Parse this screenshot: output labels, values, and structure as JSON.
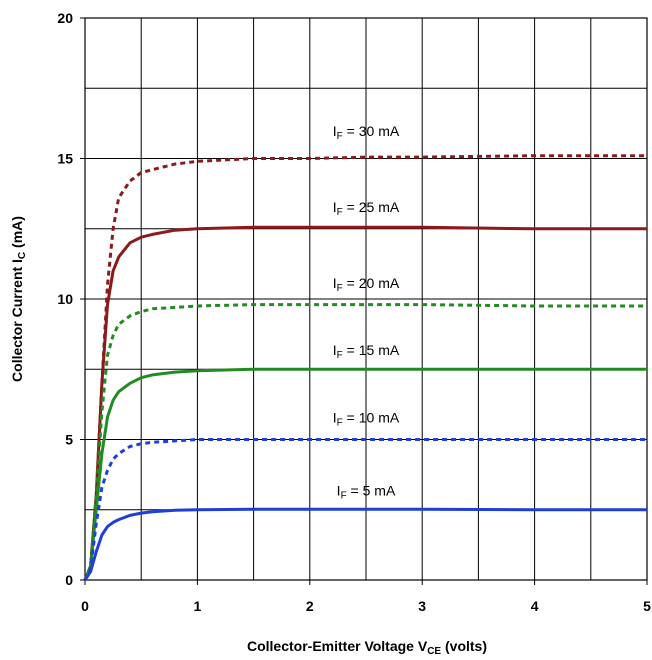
{
  "chart_data": {
    "type": "line",
    "xlabel": {
      "main": "Collector-Emitter Voltage V",
      "sub": "CE",
      "tail": " (volts)"
    },
    "ylabel": {
      "main": "Collector Current I",
      "sub": "C",
      "tail": " (mA)"
    },
    "xlim": [
      0,
      5
    ],
    "ylim": [
      0,
      20
    ],
    "xticks": [
      "0",
      "1",
      "2",
      "3",
      "4",
      "5"
    ],
    "yticks": [
      "0",
      "5",
      "10",
      "15",
      "20"
    ],
    "x_grid_step": 0.5,
    "y_grid_step": 2.5,
    "grid": true,
    "legend": "none",
    "series": [
      {
        "label_parts": {
          "pre": "I",
          "sub": "F",
          "post": " = 30 mA"
        },
        "label_pos": [
          2.5,
          15.8
        ],
        "color": "#8b1a1a",
        "style": "dashed",
        "points": [
          [
            0,
            0
          ],
          [
            0.05,
            0.5
          ],
          [
            0.1,
            3
          ],
          [
            0.15,
            7
          ],
          [
            0.2,
            10.5
          ],
          [
            0.25,
            12.5
          ],
          [
            0.3,
            13.6
          ],
          [
            0.4,
            14.2
          ],
          [
            0.5,
            14.5
          ],
          [
            0.6,
            14.6
          ],
          [
            0.8,
            14.8
          ],
          [
            1,
            14.9
          ],
          [
            1.5,
            15.0
          ],
          [
            2,
            15.0
          ],
          [
            2.5,
            15.05
          ],
          [
            3,
            15.05
          ],
          [
            4,
            15.1
          ],
          [
            5,
            15.1
          ]
        ]
      },
      {
        "label_parts": {
          "pre": "I",
          "sub": "F",
          "post": " = 25 mA"
        },
        "label_pos": [
          2.5,
          13.1
        ],
        "color": "#8b1a1a",
        "style": "solid",
        "points": [
          [
            0,
            0
          ],
          [
            0.05,
            0.5
          ],
          [
            0.1,
            3
          ],
          [
            0.15,
            7
          ],
          [
            0.2,
            9.8
          ],
          [
            0.25,
            11.0
          ],
          [
            0.3,
            11.5
          ],
          [
            0.4,
            12.0
          ],
          [
            0.5,
            12.2
          ],
          [
            0.6,
            12.3
          ],
          [
            0.8,
            12.45
          ],
          [
            1,
            12.5
          ],
          [
            1.5,
            12.55
          ],
          [
            2,
            12.55
          ],
          [
            2.5,
            12.55
          ],
          [
            3,
            12.55
          ],
          [
            4,
            12.5
          ],
          [
            5,
            12.5
          ]
        ]
      },
      {
        "label_parts": {
          "pre": "I",
          "sub": "F",
          "post": " = 20 mA"
        },
        "label_pos": [
          2.5,
          10.4
        ],
        "color": "#228b22",
        "style": "dashed",
        "points": [
          [
            0,
            0
          ],
          [
            0.05,
            0.5
          ],
          [
            0.1,
            3
          ],
          [
            0.15,
            6
          ],
          [
            0.2,
            8.0
          ],
          [
            0.25,
            8.7
          ],
          [
            0.3,
            9.1
          ],
          [
            0.4,
            9.4
          ],
          [
            0.5,
            9.55
          ],
          [
            0.6,
            9.65
          ],
          [
            0.8,
            9.7
          ],
          [
            1,
            9.75
          ],
          [
            1.5,
            9.8
          ],
          [
            2,
            9.8
          ],
          [
            2.5,
            9.8
          ],
          [
            3,
            9.8
          ],
          [
            4,
            9.75
          ],
          [
            5,
            9.75
          ]
        ]
      },
      {
        "label_parts": {
          "pre": "I",
          "sub": "F",
          "post": " = 15 mA"
        },
        "label_pos": [
          2.5,
          8.0
        ],
        "color": "#228b22",
        "style": "solid",
        "points": [
          [
            0,
            0
          ],
          [
            0.05,
            0.5
          ],
          [
            0.1,
            2.5
          ],
          [
            0.15,
            4.5
          ],
          [
            0.2,
            5.8
          ],
          [
            0.25,
            6.4
          ],
          [
            0.3,
            6.7
          ],
          [
            0.4,
            7.0
          ],
          [
            0.5,
            7.2
          ],
          [
            0.6,
            7.3
          ],
          [
            0.8,
            7.4
          ],
          [
            1,
            7.45
          ],
          [
            1.5,
            7.5
          ],
          [
            2,
            7.5
          ],
          [
            2.5,
            7.5
          ],
          [
            3,
            7.5
          ],
          [
            4,
            7.5
          ],
          [
            5,
            7.5
          ]
        ]
      },
      {
        "label_parts": {
          "pre": "I",
          "sub": "F",
          "post": " = 10 mA"
        },
        "label_pos": [
          2.5,
          5.6
        ],
        "color": "#1f3fd6",
        "style": "dashed",
        "points": [
          [
            0,
            0
          ],
          [
            0.05,
            0.4
          ],
          [
            0.1,
            2.0
          ],
          [
            0.15,
            3.3
          ],
          [
            0.2,
            3.9
          ],
          [
            0.25,
            4.3
          ],
          [
            0.3,
            4.5
          ],
          [
            0.4,
            4.75
          ],
          [
            0.5,
            4.85
          ],
          [
            0.6,
            4.9
          ],
          [
            0.8,
            4.95
          ],
          [
            1,
            5.0
          ],
          [
            1.5,
            5.0
          ],
          [
            2,
            5.0
          ],
          [
            2.5,
            5.0
          ],
          [
            3,
            5.0
          ],
          [
            4,
            5.0
          ],
          [
            5,
            5.0
          ]
        ]
      },
      {
        "label_parts": {
          "pre": "I",
          "sub": "F",
          "post": " = 5 mA"
        },
        "label_pos": [
          2.5,
          3.0
        ],
        "color": "#1f3fd6",
        "style": "solid",
        "points": [
          [
            0,
            0
          ],
          [
            0.05,
            0.3
          ],
          [
            0.1,
            1.0
          ],
          [
            0.15,
            1.6
          ],
          [
            0.2,
            1.9
          ],
          [
            0.25,
            2.05
          ],
          [
            0.3,
            2.15
          ],
          [
            0.4,
            2.3
          ],
          [
            0.5,
            2.38
          ],
          [
            0.6,
            2.43
          ],
          [
            0.8,
            2.48
          ],
          [
            1,
            2.5
          ],
          [
            1.5,
            2.52
          ],
          [
            2,
            2.52
          ],
          [
            2.5,
            2.52
          ],
          [
            3,
            2.52
          ],
          [
            4,
            2.5
          ],
          [
            5,
            2.5
          ]
        ]
      }
    ]
  }
}
